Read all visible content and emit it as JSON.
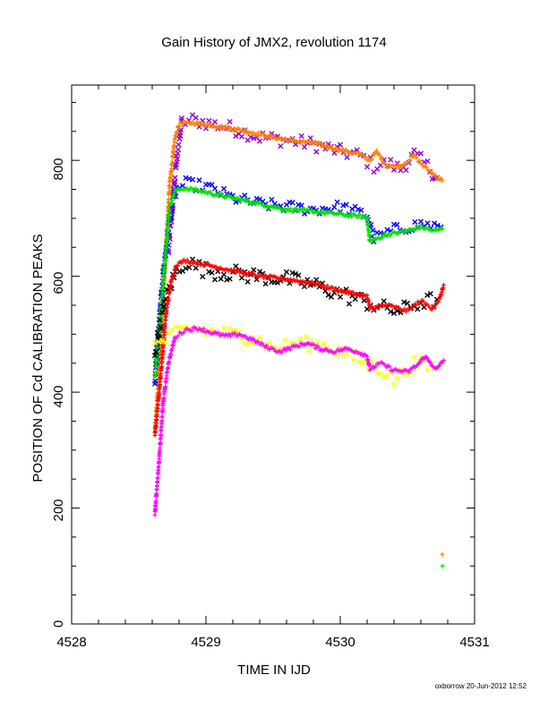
{
  "chart_data": {
    "type": "scatter",
    "title": "Gain History of JMX2, revolution 1174",
    "xlabel": "TIME IN IJD",
    "ylabel": "POSITION OF Cd CALIBRATION PEAKS",
    "xlim": [
      4528,
      4531
    ],
    "ylim": [
      0,
      930
    ],
    "xticks": [
      "4528",
      "4529",
      "4530",
      "4531"
    ],
    "yticks": [
      "0",
      "200",
      "400",
      "600",
      "800"
    ],
    "grid": false,
    "legend": "none",
    "footer": "oxborrow 20-Jun-2012 12:52",
    "series": [
      {
        "color": "#9400d3",
        "marker": "cross-x",
        "scatter": 12,
        "points": [
          [
            4528.72,
            640
          ],
          [
            4528.75,
            720
          ],
          [
            4528.78,
            800
          ],
          [
            4528.82,
            865
          ],
          [
            4528.9,
            870
          ],
          [
            4529.0,
            865
          ],
          [
            4529.2,
            855
          ],
          [
            4529.4,
            840
          ],
          [
            4529.6,
            835
          ],
          [
            4529.8,
            828
          ],
          [
            4530.0,
            815
          ],
          [
            4530.15,
            808
          ],
          [
            4530.25,
            790
          ],
          [
            4530.35,
            795
          ],
          [
            4530.45,
            785
          ],
          [
            4530.55,
            810
          ],
          [
            4530.65,
            790
          ],
          [
            4530.72,
            770
          ]
        ]
      },
      {
        "color": "#ff7f00",
        "marker": "plus-line",
        "scatter": 3,
        "points": [
          [
            4528.62,
            330
          ],
          [
            4528.66,
            470
          ],
          [
            4528.7,
            640
          ],
          [
            4528.73,
            760
          ],
          [
            4528.77,
            840
          ],
          [
            4528.8,
            862
          ],
          [
            4528.9,
            865
          ],
          [
            4529.0,
            862
          ],
          [
            4529.2,
            855
          ],
          [
            4529.4,
            845
          ],
          [
            4529.6,
            835
          ],
          [
            4529.8,
            830
          ],
          [
            4530.0,
            818
          ],
          [
            4530.15,
            810
          ],
          [
            4530.22,
            800
          ],
          [
            4530.27,
            815
          ],
          [
            4530.35,
            790
          ],
          [
            4530.45,
            790
          ],
          [
            4530.55,
            808
          ],
          [
            4530.62,
            790
          ],
          [
            4530.7,
            775
          ],
          [
            4530.76,
            765
          ]
        ]
      },
      {
        "color": "#0000ff",
        "marker": "cross-x",
        "scatter": 10,
        "points": [
          [
            4528.62,
            420
          ],
          [
            4528.68,
            600
          ],
          [
            4528.73,
            700
          ],
          [
            4528.78,
            750
          ],
          [
            4528.85,
            760
          ],
          [
            4529.0,
            755
          ],
          [
            4529.2,
            735
          ],
          [
            4529.4,
            725
          ],
          [
            4529.6,
            720
          ],
          [
            4529.8,
            715
          ],
          [
            4530.0,
            720
          ],
          [
            4530.2,
            705
          ],
          [
            4530.25,
            665
          ],
          [
            4530.4,
            680
          ],
          [
            4530.6,
            690
          ],
          [
            4530.75,
            685
          ]
        ]
      },
      {
        "color": "#00e000",
        "marker": "plus-line",
        "scatter": 3,
        "points": [
          [
            4528.62,
            425
          ],
          [
            4528.66,
            530
          ],
          [
            4528.7,
            640
          ],
          [
            4528.73,
            720
          ],
          [
            4528.77,
            748
          ],
          [
            4528.85,
            752
          ],
          [
            4529.0,
            745
          ],
          [
            4529.2,
            735
          ],
          [
            4529.4,
            725
          ],
          [
            4529.6,
            715
          ],
          [
            4529.8,
            712
          ],
          [
            4530.0,
            707
          ],
          [
            4530.2,
            702
          ],
          [
            4530.22,
            660
          ],
          [
            4530.35,
            672
          ],
          [
            4530.5,
            678
          ],
          [
            4530.6,
            685
          ],
          [
            4530.7,
            678
          ],
          [
            4530.76,
            682
          ]
        ]
      },
      {
        "color": "#000000",
        "marker": "cross-x",
        "scatter": 14,
        "points": [
          [
            4528.62,
            470
          ],
          [
            4528.7,
            560
          ],
          [
            4528.78,
            610
          ],
          [
            4528.85,
            625
          ],
          [
            4529.0,
            610
          ],
          [
            4529.2,
            605
          ],
          [
            4529.4,
            600
          ],
          [
            4529.6,
            595
          ],
          [
            4529.8,
            585
          ],
          [
            4530.0,
            570
          ],
          [
            4530.2,
            555
          ],
          [
            4530.3,
            545
          ],
          [
            4530.45,
            540
          ],
          [
            4530.6,
            555
          ],
          [
            4530.72,
            560
          ]
        ]
      },
      {
        "color": "#ff0000",
        "marker": "plus-line",
        "scatter": 3,
        "points": [
          [
            4528.62,
            325
          ],
          [
            4528.66,
            420
          ],
          [
            4528.7,
            530
          ],
          [
            4528.74,
            590
          ],
          [
            4528.78,
            620
          ],
          [
            4528.85,
            627
          ],
          [
            4529.0,
            620
          ],
          [
            4529.2,
            610
          ],
          [
            4529.4,
            600
          ],
          [
            4529.6,
            595
          ],
          [
            4529.8,
            588
          ],
          [
            4530.0,
            575
          ],
          [
            4530.2,
            565
          ],
          [
            4530.22,
            545
          ],
          [
            4530.35,
            550
          ],
          [
            4530.5,
            540
          ],
          [
            4530.6,
            558
          ],
          [
            4530.68,
            545
          ],
          [
            4530.74,
            560
          ],
          [
            4530.77,
            585
          ]
        ]
      },
      {
        "color": "#ffff00",
        "marker": "cross-x",
        "scatter": 12,
        "points": [
          [
            4528.62,
            480
          ],
          [
            4528.7,
            490
          ],
          [
            4528.8,
            505
          ],
          [
            4528.9,
            510
          ],
          [
            4529.0,
            505
          ],
          [
            4529.2,
            500
          ],
          [
            4529.4,
            490
          ],
          [
            4529.5,
            475
          ],
          [
            4529.7,
            485
          ],
          [
            4529.9,
            480
          ],
          [
            4530.0,
            470
          ],
          [
            4530.1,
            460
          ],
          [
            4530.3,
            440
          ],
          [
            4530.4,
            420
          ],
          [
            4530.55,
            450
          ],
          [
            4530.7,
            440
          ]
        ]
      },
      {
        "color": "#ff00ff",
        "marker": "plus-line",
        "scatter": 3,
        "points": [
          [
            4528.62,
            190
          ],
          [
            4528.65,
            280
          ],
          [
            4528.68,
            380
          ],
          [
            4528.72,
            450
          ],
          [
            4528.77,
            495
          ],
          [
            4528.85,
            508
          ],
          [
            4528.95,
            510
          ],
          [
            4529.05,
            502
          ],
          [
            4529.15,
            497
          ],
          [
            4529.25,
            500
          ],
          [
            4529.35,
            490
          ],
          [
            4529.45,
            478
          ],
          [
            4529.55,
            470
          ],
          [
            4529.65,
            478
          ],
          [
            4529.75,
            485
          ],
          [
            4529.85,
            475
          ],
          [
            4529.95,
            470
          ],
          [
            4530.05,
            475
          ],
          [
            4530.15,
            468
          ],
          [
            4530.2,
            462
          ],
          [
            4530.22,
            440
          ],
          [
            4530.3,
            450
          ],
          [
            4530.4,
            438
          ],
          [
            4530.5,
            435
          ],
          [
            4530.58,
            448
          ],
          [
            4530.63,
            462
          ],
          [
            4530.68,
            448
          ],
          [
            4530.72,
            440
          ],
          [
            4530.77,
            455
          ]
        ]
      }
    ],
    "outliers": [
      {
        "color": "#ff7f00",
        "x": 4530.76,
        "y": 120
      },
      {
        "color": "#00e000",
        "x": 4530.76,
        "y": 100
      }
    ]
  }
}
